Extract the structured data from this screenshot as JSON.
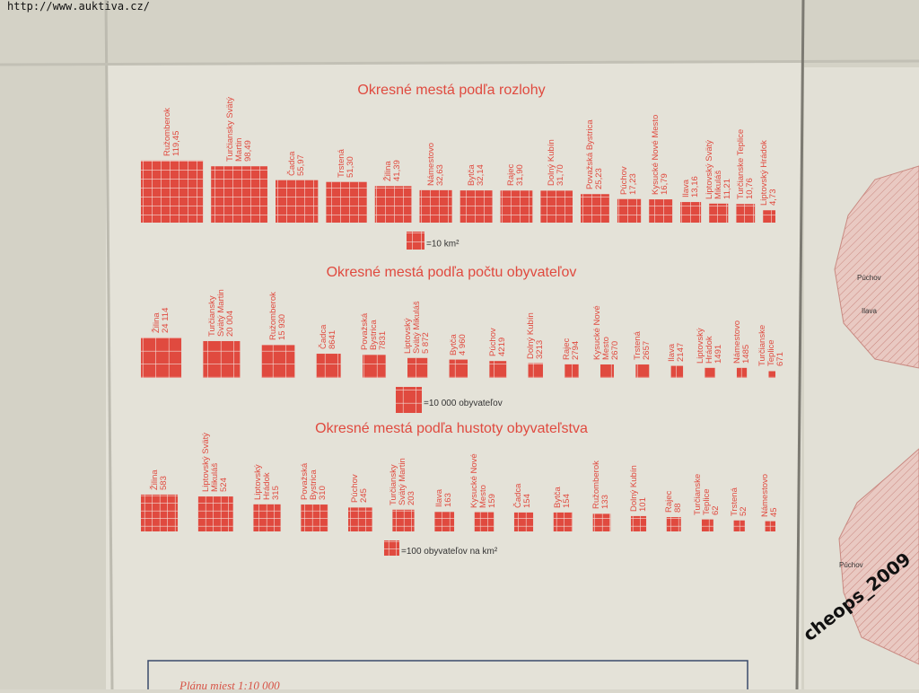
{
  "header": {
    "url": "http://www.auktiva.cz/"
  },
  "chart_data": [
    {
      "type": "area",
      "title": "Okresné mestá podľa rozlohy",
      "color": "#e04a3f",
      "categories": [
        "Ružomberok",
        "Turčiansky Svätý Martin",
        "Čadca",
        "Trstená",
        "Žilina",
        "Námestovo",
        "Bytča",
        "Rajec",
        "Dolný Kubín",
        "Považská Bystrica",
        "Púchov",
        "Kysucké Nové Mesto",
        "Ilava",
        "Liptovský Svätý Mikuláš",
        "Turčianske Teplice",
        "Liptovský Hrádok"
      ],
      "values": [
        119.45,
        98.49,
        55.97,
        51.3,
        41.39,
        32.63,
        32.14,
        31.9,
        31.7,
        25.23,
        17.23,
        16.79,
        13.16,
        11.21,
        10.76,
        4.73
      ],
      "value_labels": [
        "119,45",
        "98,49",
        "55,97",
        "51,30",
        "41,39",
        "32,63",
        "32,14",
        "31,90",
        "31,70",
        "25,23",
        "17,23",
        "16,79",
        "13,16",
        "11,21",
        "10,76",
        "4,73"
      ],
      "legend": {
        "value": 10,
        "label": "=10 km²"
      }
    },
    {
      "type": "area",
      "title": "Okresné mestá podľa počtu obyvateľov",
      "color": "#e04a3f",
      "categories": [
        "Žilina",
        "Turčiansky Svätý Martin",
        "Ružomberok",
        "Čadca",
        "Považská Bystrica",
        "Liptovský Svätý Mikuláš",
        "Bytča",
        "Púchov",
        "Dolný Kubín",
        "Rajec",
        "Kysucké Nové Mesto",
        "Trstená",
        "Ilava",
        "Liptovský Hrádok",
        "Námestovo",
        "Turčianske Teplice"
      ],
      "values": [
        24114,
        20004,
        15930,
        8641,
        7831,
        5872,
        4960,
        4219,
        3213,
        2794,
        2670,
        2657,
        2147,
        1491,
        1485,
        671
      ],
      "value_labels": [
        "24 114",
        "20 004",
        "15 930",
        "8641",
        "7831",
        "5 872",
        "4 960",
        "4219",
        "3213",
        "2794",
        "2670",
        "2657",
        "2147",
        "1491",
        "1485",
        "671"
      ],
      "legend": {
        "value": 10000,
        "label": "=10 000 obyvateľov"
      }
    },
    {
      "type": "area",
      "title": "Okresné mestá podľa hustoty obyvateľstva",
      "color": "#e04a3f",
      "categories": [
        "Žilina",
        "Liptovský Svätý Mikuláš",
        "Liptovský Hrádok",
        "Považská Bystrica",
        "Púchov",
        "Turčiansky Svätý Martin",
        "Ilava",
        "Kysucké Nové Mesto",
        "Čadca",
        "Bytča",
        "Ružomberok",
        "Dolný Kubín",
        "Rajec",
        "Turčianske Teplice",
        "Trstená",
        "Námestovo"
      ],
      "values": [
        583,
        524,
        315,
        310,
        245,
        203,
        163,
        159,
        154,
        154,
        133,
        101,
        88,
        62,
        52,
        45
      ],
      "value_labels": [
        "583",
        "524",
        "315",
        "310",
        "245",
        "203",
        "163",
        "159",
        "154",
        "154",
        "133",
        "101",
        "88",
        "62",
        "52",
        "45"
      ],
      "legend": {
        "value": 100,
        "label": "=100 obyvateľov na km²"
      }
    }
  ],
  "footer": {
    "text": "Plánu miest 1:10 000"
  },
  "map_labels": [
    "Púchov",
    "Ilava",
    "Púchov"
  ],
  "watermark": "cheops_2009"
}
